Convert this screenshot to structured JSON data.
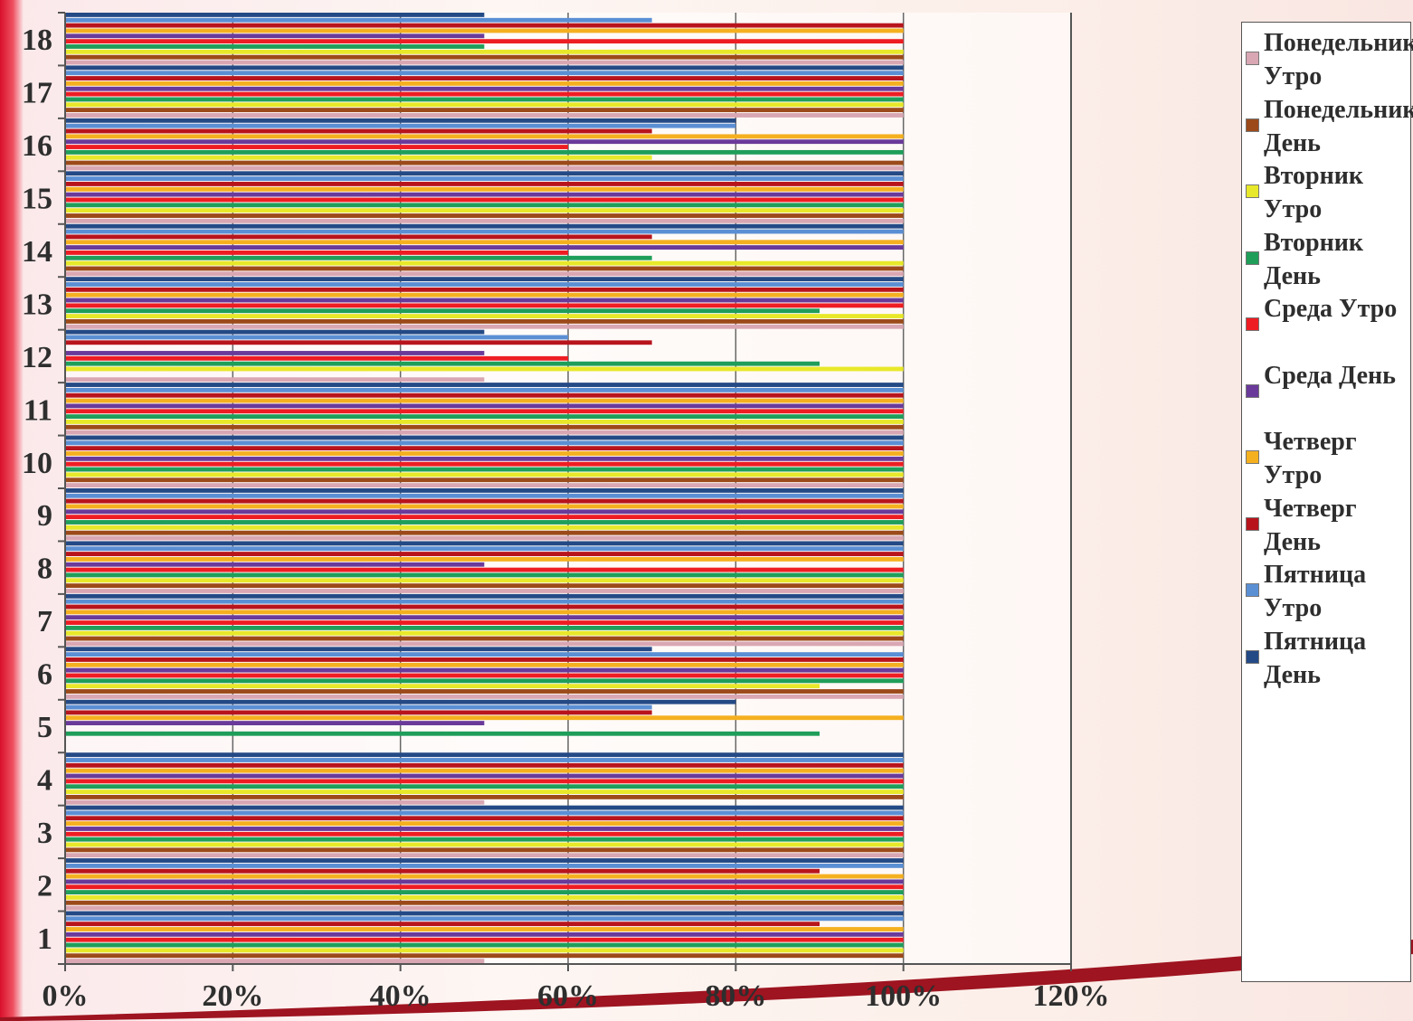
{
  "chart_data": {
    "type": "bar",
    "orientation": "horizontal",
    "categories": [
      "1",
      "2",
      "3",
      "4",
      "5",
      "6",
      "7",
      "8",
      "9",
      "10",
      "11",
      "12",
      "13",
      "14",
      "15",
      "16",
      "17",
      "18"
    ],
    "x_ticks": [
      "0%",
      "20%",
      "40%",
      "60%",
      "80%",
      "100%",
      "120%"
    ],
    "xlim": [
      0,
      120
    ],
    "grid": "vertical",
    "legend_position": "right",
    "series": [
      {
        "name": "Понедельник Утро",
        "color": "#d9a7b3",
        "values": [
          50,
          100,
          100,
          50,
          0,
          100,
          100,
          100,
          100,
          100,
          100,
          50,
          100,
          100,
          100,
          100,
          100,
          100
        ]
      },
      {
        "name": "Понедельник День",
        "color": "#9c4a1a",
        "values": [
          100,
          100,
          100,
          100,
          0,
          100,
          100,
          100,
          100,
          100,
          100,
          0,
          100,
          100,
          100,
          100,
          100,
          100
        ]
      },
      {
        "name": "Вторник Утро",
        "color": "#e8e82a",
        "values": [
          100,
          100,
          100,
          100,
          0,
          90,
          100,
          100,
          100,
          100,
          100,
          100,
          100,
          100,
          100,
          70,
          100,
          100
        ]
      },
      {
        "name": "Вторник День",
        "color": "#1f9e5a",
        "values": [
          100,
          100,
          100,
          100,
          90,
          100,
          100,
          100,
          100,
          100,
          100,
          90,
          90,
          70,
          100,
          100,
          100,
          50
        ]
      },
      {
        "name": "Среда Утро",
        "color": "#ee1d23",
        "values": [
          100,
          100,
          100,
          100,
          0,
          100,
          100,
          100,
          100,
          100,
          100,
          60,
          100,
          60,
          100,
          60,
          100,
          100
        ]
      },
      {
        "name": "Среда День",
        "color": "#6a3a9a",
        "values": [
          100,
          100,
          100,
          100,
          50,
          100,
          100,
          50,
          100,
          100,
          100,
          50,
          100,
          100,
          100,
          100,
          100,
          50
        ]
      },
      {
        "name": "Четверг Утро",
        "color": "#f5b020",
        "values": [
          100,
          100,
          100,
          100,
          100,
          100,
          100,
          100,
          100,
          100,
          100,
          0,
          100,
          100,
          100,
          100,
          100,
          100
        ]
      },
      {
        "name": "Четверг День",
        "color": "#b8141c",
        "values": [
          90,
          90,
          100,
          100,
          70,
          100,
          100,
          100,
          100,
          100,
          100,
          70,
          100,
          70,
          100,
          70,
          100,
          100
        ]
      },
      {
        "name": "Пятница Утро",
        "color": "#5b8fd4",
        "values": [
          100,
          100,
          100,
          100,
          70,
          100,
          100,
          100,
          100,
          100,
          100,
          60,
          100,
          100,
          100,
          80,
          100,
          70
        ]
      },
      {
        "name": "Пятница День",
        "color": "#244a86",
        "values": [
          100,
          100,
          100,
          100,
          80,
          70,
          100,
          100,
          100,
          100,
          100,
          50,
          100,
          100,
          100,
          80,
          100,
          50
        ]
      }
    ]
  }
}
